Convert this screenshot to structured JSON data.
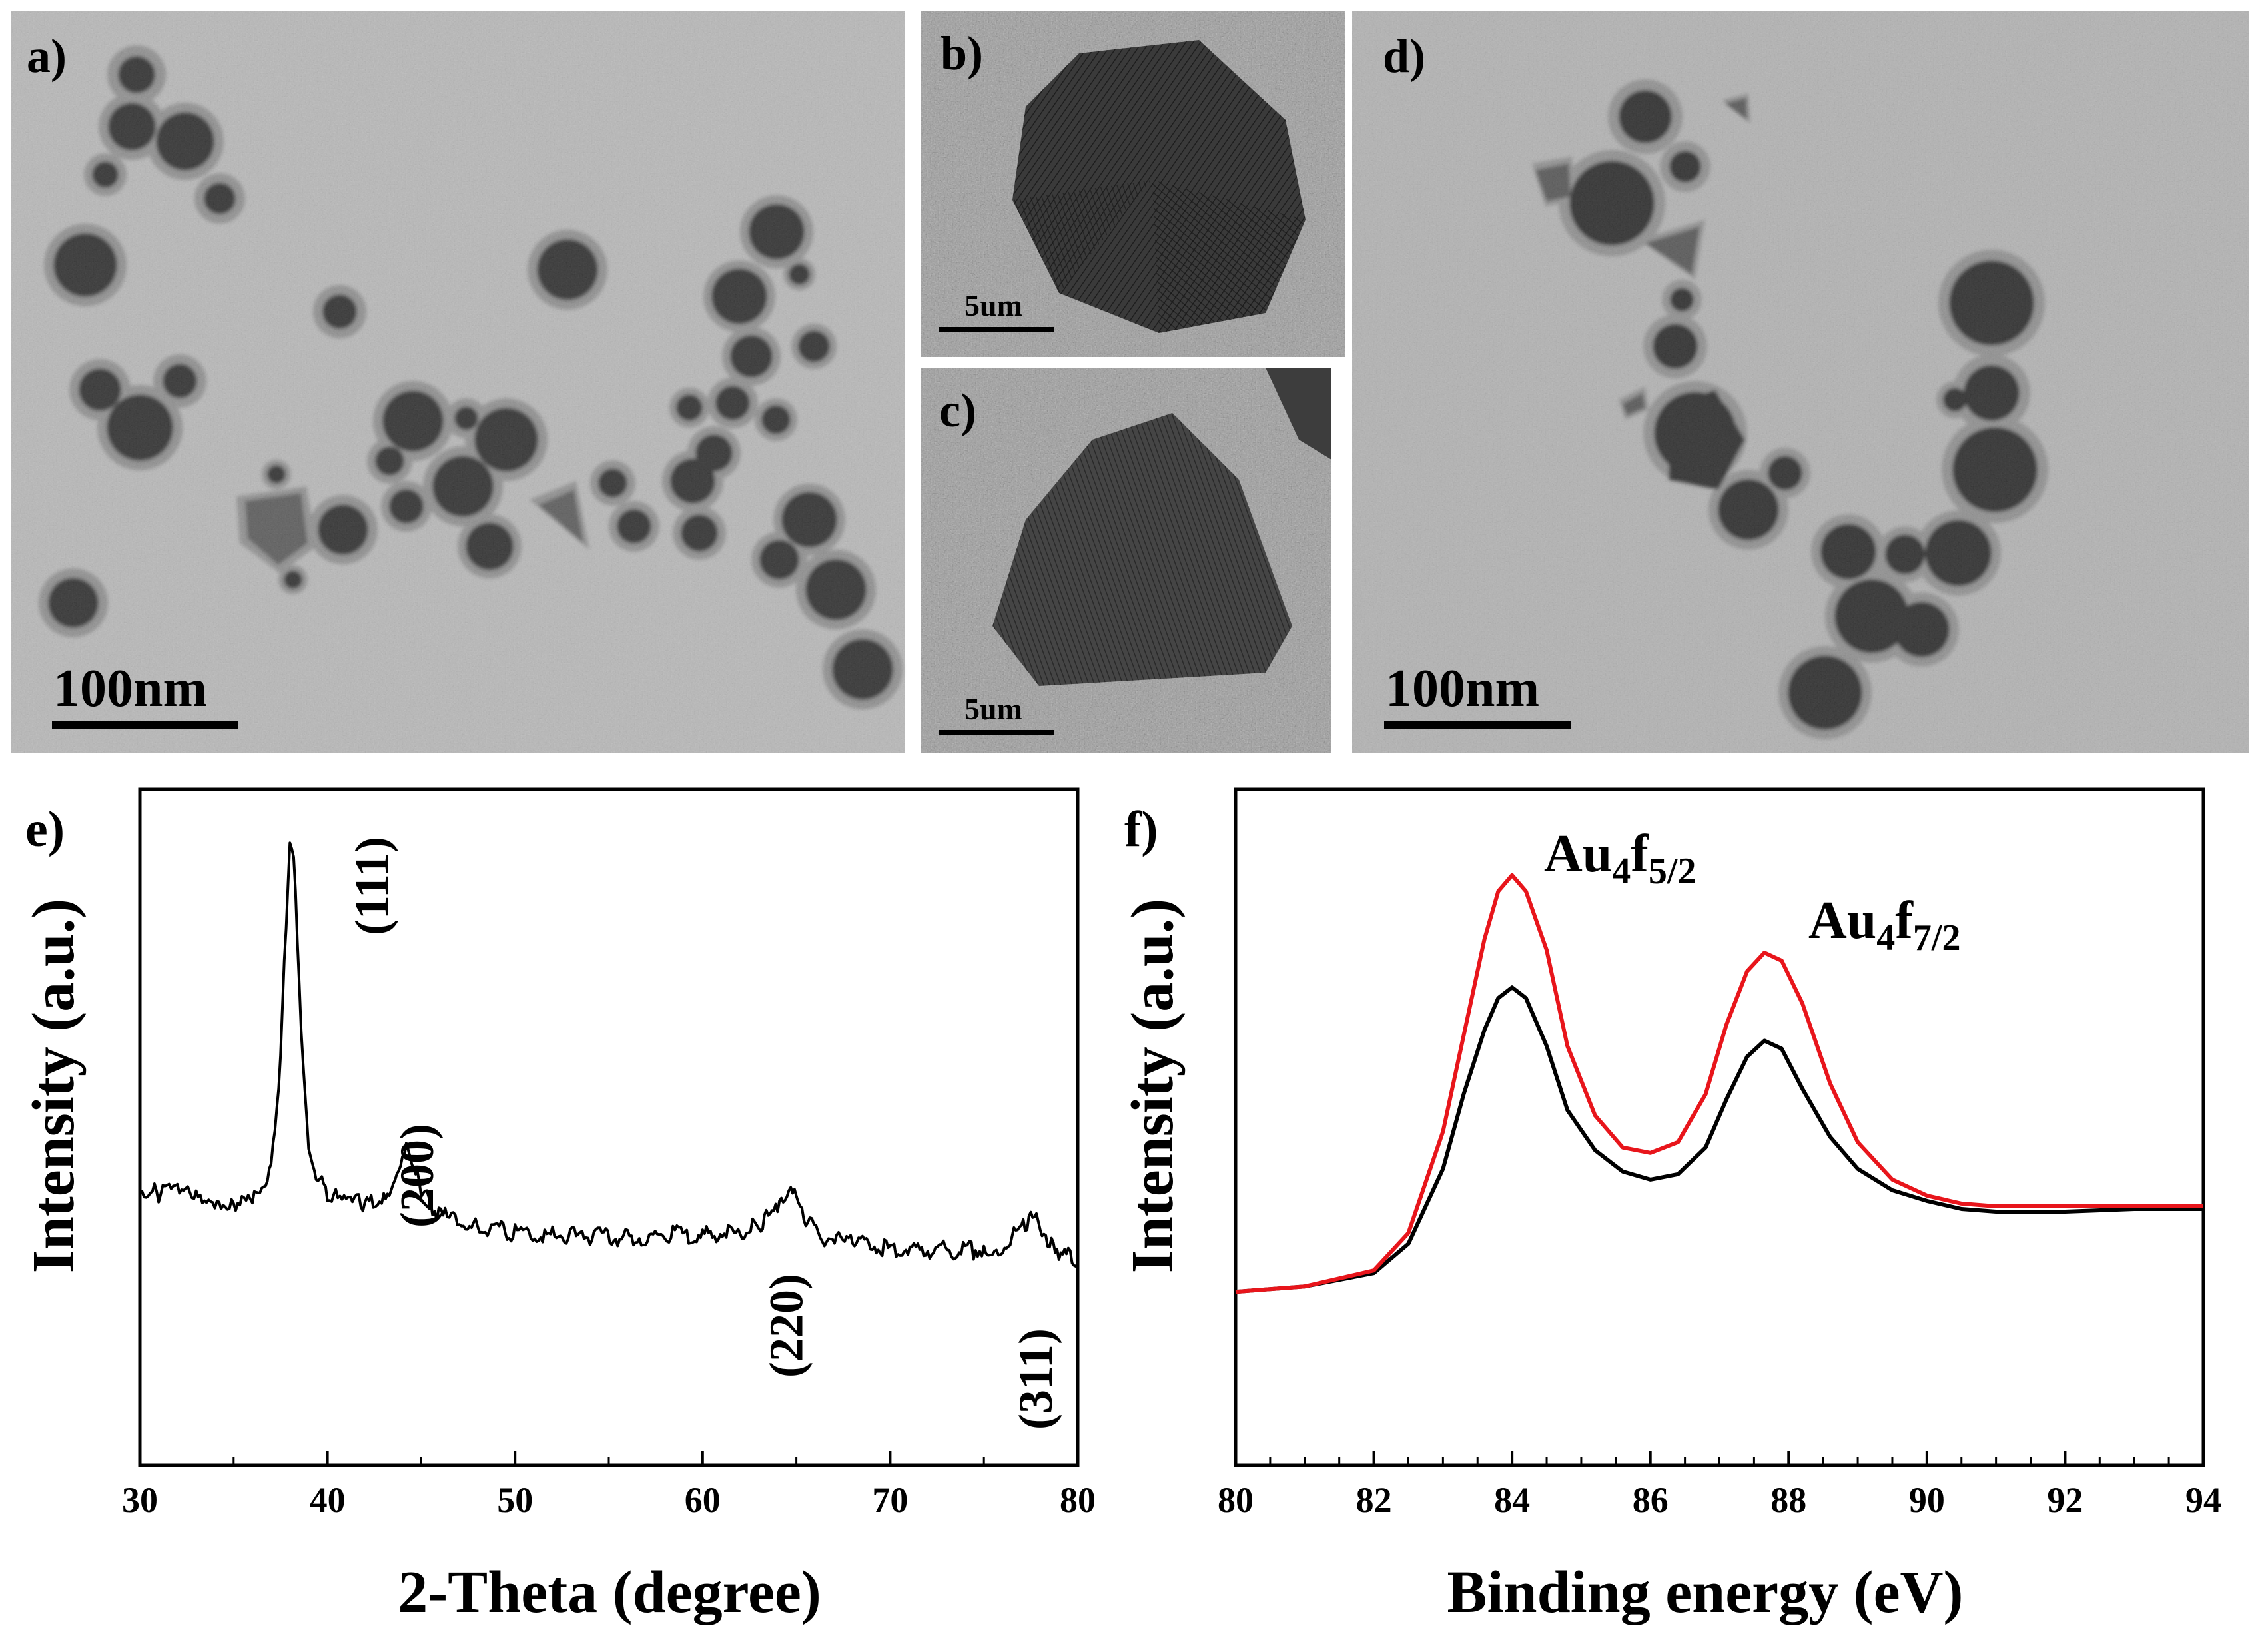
{
  "panels": {
    "a": {
      "label": "a)",
      "scale_bar": "100nm"
    },
    "b": {
      "label": "b)",
      "scale_bar": "5um"
    },
    "c": {
      "label": "c)",
      "scale_bar": "5um"
    },
    "d": {
      "label": "d)",
      "scale_bar": "100nm"
    },
    "e": {
      "label": "e)"
    },
    "f": {
      "label": "f)"
    }
  },
  "chart_data": [
    {
      "panel": "e",
      "type": "line",
      "xlabel": "2-Theta (degree)",
      "ylabel": "Intensity (a.u.)",
      "xlim": [
        30,
        80
      ],
      "xticks": [
        30,
        40,
        50,
        60,
        70,
        80
      ],
      "ylim": [
        0,
        100
      ],
      "yticks_shown": false,
      "series": [
        {
          "color": "#000000",
          "x": [
            30,
            31,
            32,
            33,
            34,
            35,
            36,
            36.5,
            37,
            37.4,
            37.7,
            38.0,
            38.2,
            38.4,
            38.7,
            39.0,
            39.4,
            40,
            41,
            42,
            43,
            43.5,
            44.0,
            44.2,
            44.5,
            45.0,
            45.6,
            46.5,
            48,
            50,
            52,
            54,
            56,
            58,
            60,
            62,
            63,
            63.8,
            64.3,
            64.6,
            65.0,
            65.6,
            66.5,
            68,
            70,
            72,
            74,
            75,
            76,
            76.8,
            77.4,
            77.8,
            78.2,
            78.8,
            79.5,
            80
          ],
          "y": [
            23,
            22,
            22,
            21,
            20.5,
            20,
            20,
            21,
            27,
            45,
            75,
            100,
            98,
            80,
            50,
            33,
            26,
            22,
            20,
            19.5,
            21,
            25,
            31,
            32,
            29,
            23,
            18.5,
            16,
            14.5,
            13,
            12.5,
            12,
            12,
            12.5,
            12.5,
            13,
            14.5,
            18,
            22,
            23,
            20,
            15,
            12,
            10.5,
            9.5,
            9,
            9,
            9,
            10,
            13,
            16,
            16.5,
            13,
            9.5,
            7.5,
            6
          ]
        }
      ],
      "annotations": [
        {
          "text": "(111)",
          "x": 42.3
        },
        {
          "text": "(200)",
          "x": 44.7
        },
        {
          "text": "(220)",
          "x": 64.4
        },
        {
          "text": "(311)",
          "x": 77.7
        }
      ]
    },
    {
      "panel": "f",
      "type": "line",
      "xlabel": "Binding energy (eV)",
      "ylabel": "Intensity (a.u.)",
      "xlim": [
        80,
        94
      ],
      "xticks": [
        80,
        82,
        84,
        86,
        88,
        90,
        92,
        94
      ],
      "ylim": [
        0,
        100
      ],
      "yticks_shown": false,
      "series": [
        {
          "color": "#000000",
          "x": [
            80,
            81,
            82,
            82.5,
            83,
            83.3,
            83.6,
            83.8,
            84.0,
            84.2,
            84.5,
            84.8,
            85.2,
            85.6,
            86.0,
            86.4,
            86.8,
            87.1,
            87.4,
            87.65,
            87.9,
            88.2,
            88.6,
            89.0,
            89.5,
            90.0,
            90.5,
            91,
            92,
            93,
            94
          ],
          "y": [
            11,
            12,
            14.5,
            20,
            34,
            48,
            60,
            66,
            68,
            66,
            57,
            45,
            37.5,
            33.5,
            32,
            33,
            38,
            47,
            55,
            58,
            56.5,
            49,
            40,
            34,
            30,
            28,
            26.5,
            26,
            26,
            26.5,
            26.5
          ]
        },
        {
          "color": "#e8151b",
          "x": [
            80,
            81,
            82,
            82.5,
            83,
            83.3,
            83.6,
            83.8,
            84.0,
            84.2,
            84.5,
            84.8,
            85.2,
            85.6,
            86.0,
            86.4,
            86.8,
            87.1,
            87.4,
            87.65,
            87.9,
            88.2,
            88.6,
            89.0,
            89.5,
            90.0,
            90.5,
            91,
            92,
            93,
            94
          ],
          "y": [
            11,
            12,
            15,
            22,
            41,
            59,
            77,
            86,
            89,
            86,
            75,
            57,
            44,
            38,
            37,
            39,
            48,
            61,
            71,
            74.5,
            73,
            65,
            50,
            39,
            32,
            29,
            27.5,
            27,
            27,
            27,
            27
          ]
        }
      ],
      "annotations": [
        {
          "text": "Au",
          "sub1": "4",
          "mid": "f",
          "sub2": "5/2"
        },
        {
          "text": "Au",
          "sub1": "4",
          "mid": "f",
          "sub2": "7/2"
        }
      ]
    }
  ]
}
